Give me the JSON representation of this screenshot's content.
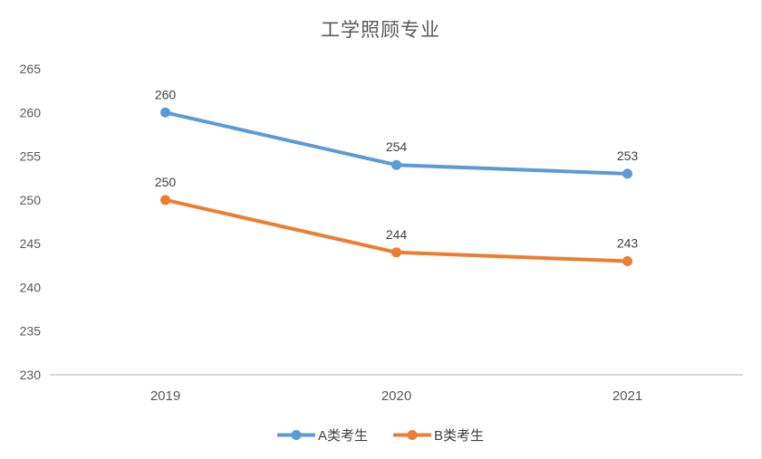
{
  "chart_data": {
    "type": "line",
    "title": "工学照顾专业",
    "categories": [
      "2019",
      "2020",
      "2021"
    ],
    "series": [
      {
        "name": "A类考生",
        "color": "#5B9BD5",
        "values": [
          260,
          254,
          253
        ]
      },
      {
        "name": "B类考生",
        "color": "#ED7D31",
        "values": [
          250,
          244,
          243
        ]
      }
    ],
    "ylim": [
      230,
      265
    ],
    "y_ticks": [
      265,
      260,
      255,
      250,
      245,
      240,
      235,
      230
    ],
    "grid": false,
    "legend_position": "bottom",
    "data_labels_shown": true,
    "colors": {
      "axis_line": "#D9D9D9",
      "tick_label": "#595959",
      "data_label": "#404040",
      "title": "#595959",
      "legend_label": "#404040"
    }
  }
}
